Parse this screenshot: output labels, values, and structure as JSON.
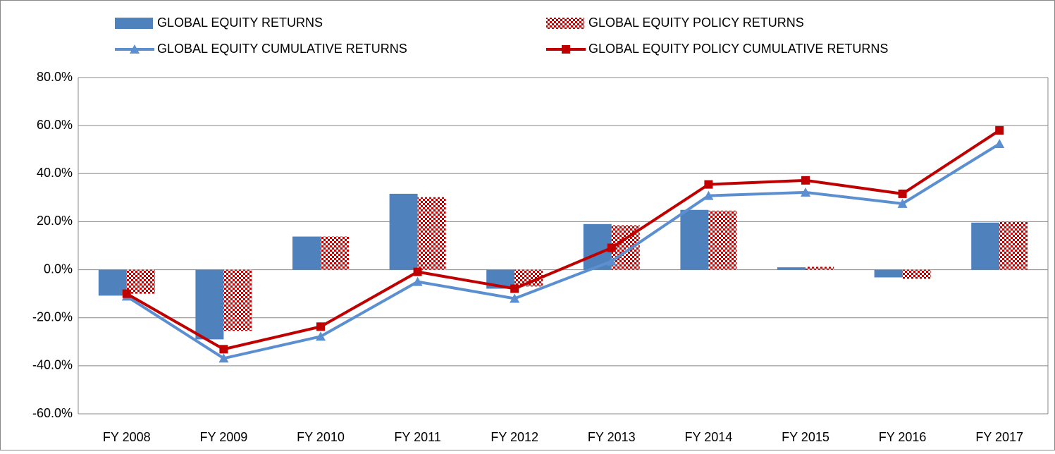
{
  "chart_data": {
    "type": "bar",
    "categories": [
      "FY 2008",
      "FY 2009",
      "FY 2010",
      "FY 2011",
      "FY 2012",
      "FY 2013",
      "FY 2014",
      "FY 2015",
      "FY 2016",
      "FY 2017"
    ],
    "series": [
      {
        "name": "GLOBAL EQUITY RETURNS",
        "type": "bar",
        "color": "#4f81bd",
        "values": [
          -10.8,
          -29.0,
          13.8,
          31.6,
          -7.9,
          19.0,
          24.9,
          1.0,
          -3.2,
          19.6
        ]
      },
      {
        "name": "GLOBAL EQUITY POLICY RETURNS",
        "type": "bar",
        "pattern": "checkered",
        "color": "#c00000",
        "values": [
          -10.0,
          -25.5,
          13.8,
          30.2,
          -7.0,
          18.5,
          24.6,
          1.2,
          -3.8,
          19.9
        ]
      },
      {
        "name": "GLOBAL EQUITY CUMULATIVE RETURNS",
        "type": "line",
        "marker": "triangle",
        "color": "#5b8fd0",
        "values": [
          -11.1,
          -36.9,
          -27.8,
          -5.0,
          -12.0,
          3.5,
          30.8,
          32.2,
          27.5,
          52.4
        ]
      },
      {
        "name": "GLOBAL EQUITY POLICY CUMULATIVE RETURNS",
        "type": "line",
        "marker": "square",
        "color": "#c00000",
        "values": [
          -10.0,
          -33.1,
          -23.7,
          -0.9,
          -7.9,
          9.1,
          35.5,
          37.2,
          31.6,
          58.0
        ]
      }
    ],
    "ylim": [
      -60,
      80
    ],
    "yticks": [
      {
        "value": -60,
        "label": "-60.0%"
      },
      {
        "value": -40,
        "label": "-40.0%"
      },
      {
        "value": -20,
        "label": "-20.0%"
      },
      {
        "value": 0,
        "label": "0.0%"
      },
      {
        "value": 20,
        "label": "20.0%"
      },
      {
        "value": 40,
        "label": "40.0%"
      },
      {
        "value": 60,
        "label": "60.0%"
      },
      {
        "value": 80,
        "label": "80.0%"
      }
    ],
    "grid": true,
    "legend": "top"
  }
}
